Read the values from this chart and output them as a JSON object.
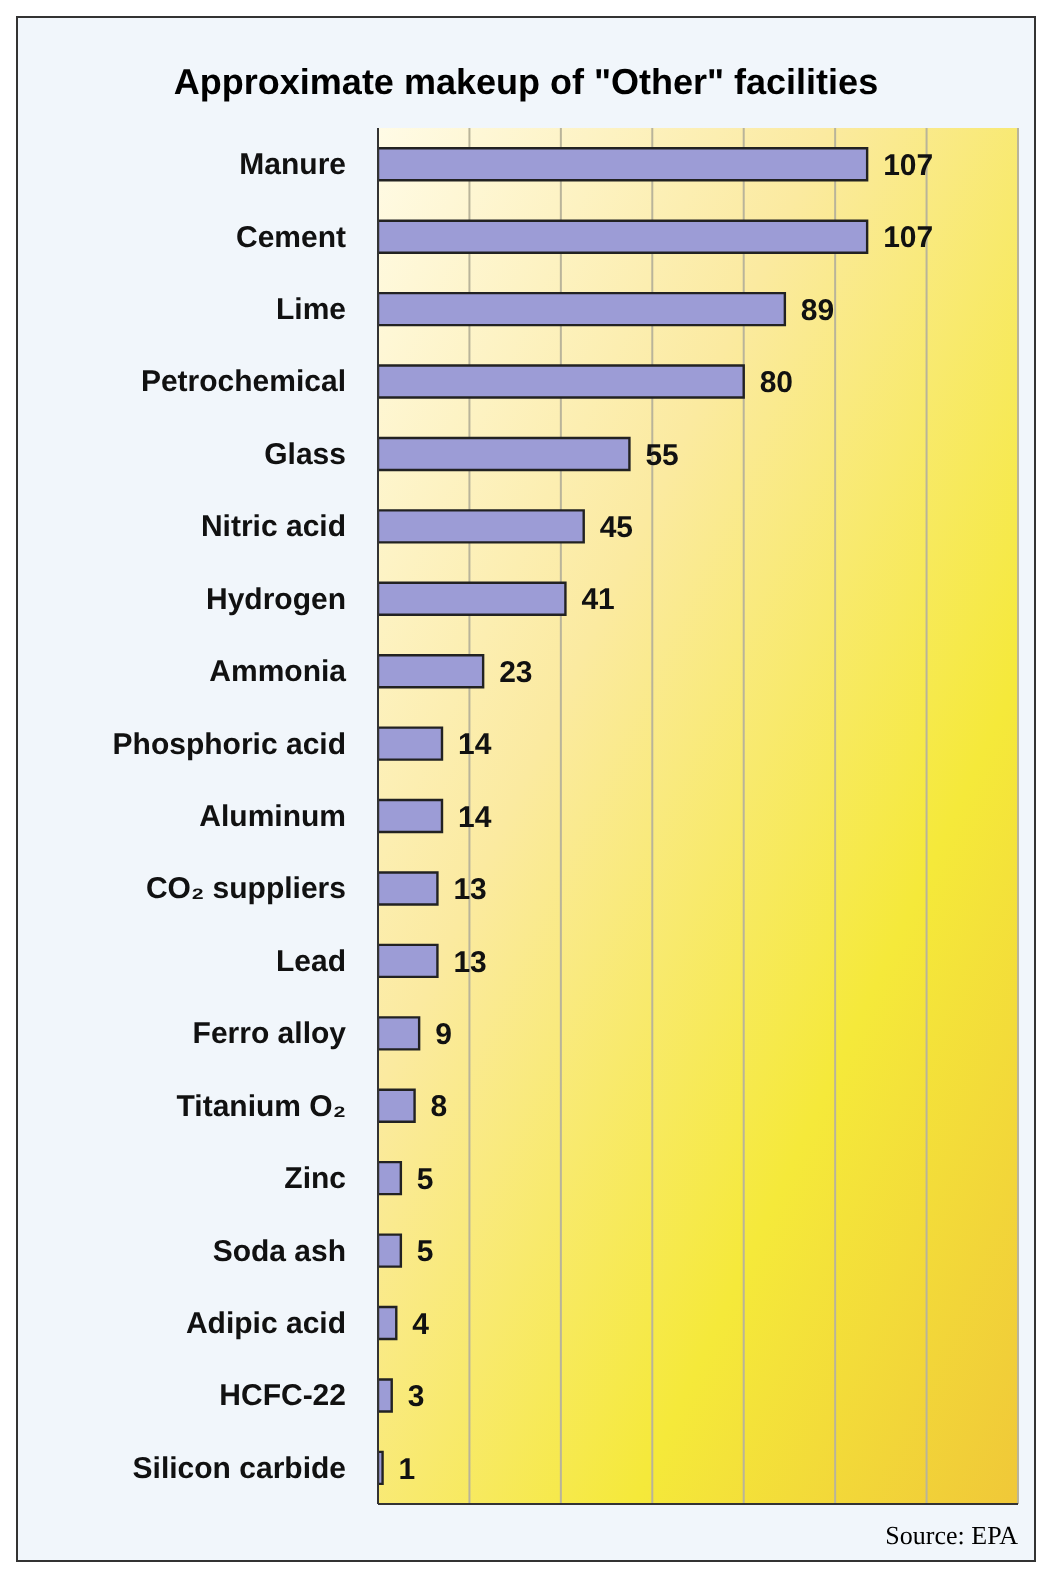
{
  "chart_data": {
    "type": "bar",
    "orientation": "horizontal",
    "title": "Approximate makeup of \"Other\" facilities",
    "categories": [
      "Manure",
      "Cement",
      "Lime",
      "Petrochemical",
      "Glass",
      "Nitric acid",
      "Hydrogen",
      "Ammonia",
      "Phosphoric acid",
      "Aluminum",
      "CO₂ suppliers",
      "Lead",
      "Ferro alloy",
      "Titanium O₂",
      "Zinc",
      "Soda ash",
      "Adipic acid",
      "HCFC-22",
      "Silicon carbide"
    ],
    "values": [
      107,
      107,
      89,
      80,
      55,
      45,
      41,
      23,
      14,
      14,
      13,
      13,
      9,
      8,
      5,
      5,
      4,
      3,
      1
    ],
    "color": "#9c9cd6",
    "xlim": [
      0,
      140
    ],
    "xticks": [
      {
        "value": 0,
        "label": null
      },
      {
        "value": 20,
        "label": null
      },
      {
        "value": 40,
        "label": null
      },
      {
        "value": 60,
        "label": null
      },
      {
        "value": 80,
        "label": null
      },
      {
        "value": 100,
        "label": null
      },
      {
        "value": 120,
        "label": null
      },
      {
        "value": 140,
        "label": null
      }
    ],
    "tick_labels": "y",
    "grid": "x",
    "data_labels": true,
    "legend": false,
    "annotations": [
      "Source: EPA"
    ]
  }
}
